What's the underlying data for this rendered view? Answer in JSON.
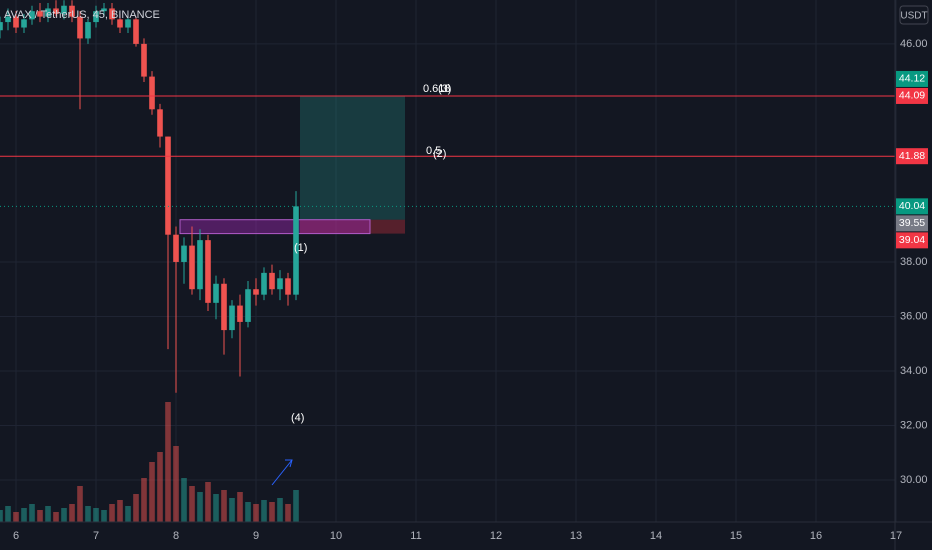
{
  "chart_data": {
    "type": "candlestick",
    "title": "AVAX / TetherUS, 45, BINANCE",
    "currency": "USDT",
    "up_color": "#26a69a",
    "down_color": "#ef5350",
    "grid": true,
    "x": [
      5.8,
      5.9,
      6.0,
      6.1,
      6.2,
      6.3,
      6.4,
      6.5,
      6.6,
      6.7,
      6.8,
      6.9,
      7.0,
      7.1,
      7.2,
      7.3,
      7.4,
      7.5,
      7.6,
      7.7,
      7.8,
      7.9,
      8.0,
      8.1,
      8.2,
      8.3,
      8.4,
      8.5,
      8.6,
      8.7,
      8.8,
      8.9,
      9.0,
      9.1,
      9.2,
      9.3,
      9.4,
      9.5
    ],
    "open": [
      46.5,
      46.8,
      47.0,
      46.6,
      46.9,
      47.2,
      47.0,
      47.3,
      47.1,
      47.4,
      47.0,
      46.2,
      46.8,
      47.2,
      47.3,
      46.9,
      46.6,
      46.9,
      46.0,
      44.8,
      43.6,
      42.6,
      39.0,
      38.0,
      38.6,
      37.0,
      38.8,
      36.5,
      37.2,
      35.5,
      36.4,
      35.8,
      37.0,
      36.8,
      37.6,
      37.0,
      37.4,
      36.8
    ],
    "high": [
      47.0,
      47.3,
      47.2,
      47.1,
      47.4,
      47.5,
      47.5,
      47.6,
      47.6,
      47.6,
      47.2,
      46.9,
      47.4,
      47.5,
      47.5,
      47.1,
      47.0,
      47.0,
      46.2,
      45.0,
      43.8,
      42.6,
      39.3,
      38.9,
      39.3,
      39.2,
      39.0,
      37.5,
      37.4,
      36.6,
      36.8,
      37.3,
      37.4,
      37.8,
      37.9,
      37.7,
      37.6,
      40.6
    ],
    "low": [
      46.2,
      46.5,
      46.4,
      46.4,
      46.7,
      46.8,
      46.8,
      47.0,
      46.9,
      46.8,
      43.6,
      46.0,
      46.6,
      47.0,
      46.7,
      46.4,
      46.4,
      45.9,
      44.6,
      43.4,
      42.2,
      34.8,
      33.2,
      37.2,
      36.8,
      36.6,
      36.2,
      35.9,
      34.6,
      35.2,
      33.8,
      35.6,
      36.4,
      36.6,
      36.8,
      36.6,
      36.4,
      36.6
    ],
    "close": [
      46.8,
      47.0,
      46.6,
      46.9,
      47.2,
      47.0,
      47.3,
      47.1,
      47.4,
      47.0,
      46.2,
      46.8,
      47.2,
      47.3,
      46.9,
      46.6,
      46.9,
      46.0,
      44.8,
      43.6,
      42.6,
      39.0,
      38.0,
      38.6,
      37.0,
      38.8,
      36.5,
      37.2,
      35.5,
      36.4,
      35.8,
      37.0,
      36.8,
      37.6,
      37.0,
      37.4,
      36.8,
      40.04
    ],
    "volume": [
      6,
      8,
      5,
      7,
      9,
      6,
      8,
      5,
      7,
      9,
      18,
      8,
      7,
      6,
      9,
      11,
      8,
      14,
      22,
      30,
      35,
      60,
      38,
      22,
      18,
      15,
      20,
      14,
      16,
      12,
      15,
      10,
      9,
      11,
      10,
      12,
      9,
      16
    ],
    "xlim": [
      5.8,
      17.025
    ],
    "xticks": [
      6,
      7,
      8,
      9,
      10,
      11,
      12,
      13,
      14,
      15,
      16,
      17
    ],
    "ylim": [
      28.46,
      47.61
    ],
    "yticks": [
      {
        "value": 30,
        "label": "30.00"
      },
      {
        "value": 32,
        "label": "32.00"
      },
      {
        "value": 34,
        "label": "34.00"
      },
      {
        "value": 36,
        "label": "36.00"
      },
      {
        "value": 38,
        "label": "38.00"
      },
      {
        "value": 46,
        "label": "46.00"
      }
    ],
    "price_labels": [
      {
        "value": 44.09,
        "label": "44.09",
        "color": "#f23645",
        "line": "solid"
      },
      {
        "value": 44.12,
        "label": "44.12",
        "color": "#089981",
        "line": "none"
      },
      {
        "value": 41.88,
        "label": "41.88",
        "color": "#f23645",
        "line": "solid"
      },
      {
        "value": 40.04,
        "label": "40.04",
        "color": "#089981",
        "line": "dotted"
      },
      {
        "value": 39.55,
        "label": "39.55",
        "color": "#787b86",
        "line": "none"
      },
      {
        "value": 39.04,
        "label": "39.04",
        "color": "#f23645",
        "line": "none"
      }
    ],
    "annotations": [
      "0.618",
      "(3)",
      "0.5",
      "(2)",
      "(1)",
      "(4)"
    ]
  }
}
